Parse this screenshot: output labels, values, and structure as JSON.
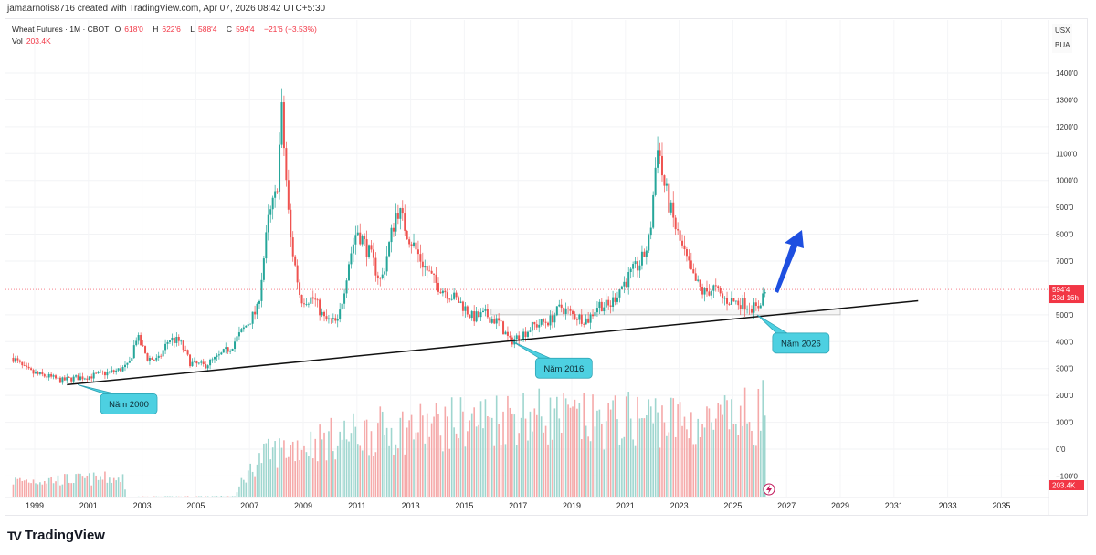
{
  "credit": "jamaarnotis8716 created with TradingView.com, Apr 07, 2026 08:42 UTC+5:30",
  "legend": {
    "title": "Wheat Futures · 1M · CBOT",
    "o_label": "O",
    "o": "618'0",
    "h_label": "H",
    "h": "622'6",
    "l_label": "L",
    "l": "588'4",
    "c_label": "C",
    "c": "594'4",
    "change": "−21'6 (−3.53%)",
    "vol_label": "Vol",
    "vol": "203.4K"
  },
  "currency": "USX",
  "unit": "BUA",
  "logo_text": "TradingView",
  "colors": {
    "up": "#26a69a",
    "down": "#ef5350",
    "accent": "#f23645",
    "callout": "#4dd0e1",
    "arrow": "#1e4fe0"
  },
  "chart_data": {
    "type": "candlestick",
    "x_ticks": [
      "1999",
      "2001",
      "2003",
      "2005",
      "2007",
      "2009",
      "2011",
      "2013",
      "2015",
      "2017",
      "2019",
      "2021",
      "2023",
      "2025",
      "2027",
      "2029",
      "2031",
      "2033",
      "2035"
    ],
    "y_ticks": [
      "1400'0",
      "1300'0",
      "1200'0",
      "1100'0",
      "1000'0",
      "900'0",
      "800'0",
      "700'0",
      "500'0",
      "400'0",
      "300'0",
      "200'0",
      "100'0",
      "0'0",
      "−100'0"
    ],
    "ylim": [
      -100,
      1400
    ],
    "xlim": [
      1998.1,
      2036.2
    ],
    "last_price": 594.5,
    "last_price_label": "594'4",
    "countdown": "23d 16h",
    "volume_label": "203.4K",
    "price_path": [
      [
        1998.2,
        340
      ],
      [
        1998.6,
        300
      ],
      [
        1999,
        280
      ],
      [
        1999.5,
        270
      ],
      [
        2000,
        255
      ],
      [
        2000.5,
        265
      ],
      [
        2001,
        270
      ],
      [
        2001.5,
        280
      ],
      [
        2002,
        290
      ],
      [
        2002.5,
        310
      ],
      [
        2002.8,
        420
      ],
      [
        2003.2,
        340
      ],
      [
        2003.6,
        330
      ],
      [
        2004,
        410
      ],
      [
        2004.4,
        400
      ],
      [
        2004.8,
        320
      ],
      [
        2005.3,
        310
      ],
      [
        2005.8,
        340
      ],
      [
        2006.3,
        380
      ],
      [
        2006.8,
        450
      ],
      [
        2007.3,
        520
      ],
      [
        2007.7,
        850
      ],
      [
        2008.0,
        950
      ],
      [
        2008.2,
        1250
      ],
      [
        2008.5,
        800
      ],
      [
        2008.9,
        560
      ],
      [
        2009.4,
        560
      ],
      [
        2009.8,
        480
      ],
      [
        2010.3,
        470
      ],
      [
        2010.7,
        700
      ],
      [
        2011.0,
        820
      ],
      [
        2011.5,
        720
      ],
      [
        2011.9,
        620
      ],
      [
        2012.5,
        900
      ],
      [
        2012.9,
        800
      ],
      [
        2013.4,
        700
      ],
      [
        2013.9,
        620
      ],
      [
        2014.4,
        580
      ],
      [
        2014.9,
        540
      ],
      [
        2015.3,
        490
      ],
      [
        2015.8,
        500
      ],
      [
        2016.3,
        470
      ],
      [
        2016.7,
        400
      ],
      [
        2017.2,
        430
      ],
      [
        2017.6,
        460
      ],
      [
        2018.2,
        480
      ],
      [
        2018.6,
        530
      ],
      [
        2019.0,
        500
      ],
      [
        2019.6,
        480
      ],
      [
        2020.0,
        540
      ],
      [
        2020.4,
        530
      ],
      [
        2020.8,
        600
      ],
      [
        2021.2,
        650
      ],
      [
        2021.6,
        700
      ],
      [
        2021.9,
        780
      ],
      [
        2022.2,
        1150
      ],
      [
        2022.4,
        1000
      ],
      [
        2022.7,
        880
      ],
      [
        2023.0,
        780
      ],
      [
        2023.5,
        640
      ],
      [
        2023.9,
        580
      ],
      [
        2024.3,
        600
      ],
      [
        2024.6,
        560
      ],
      [
        2025.0,
        550
      ],
      [
        2025.5,
        540
      ],
      [
        2025.9,
        520
      ],
      [
        2026.1,
        570
      ],
      [
        2026.25,
        594.5
      ]
    ],
    "volume_path": [
      [
        1998.2,
        60
      ],
      [
        2002.3,
        70
      ],
      [
        2002.4,
        3
      ],
      [
        2006.5,
        5
      ],
      [
        2006.7,
        60
      ],
      [
        2007.5,
        150
      ],
      [
        2008.5,
        180
      ],
      [
        2011,
        230
      ],
      [
        2014,
        260
      ],
      [
        2017,
        300
      ],
      [
        2020,
        270
      ],
      [
        2022,
        290
      ],
      [
        2024,
        260
      ],
      [
        2026,
        300
      ],
      [
        2026.25,
        360
      ]
    ],
    "trendline": [
      [
        2000.2,
        240
      ],
      [
        2031.9,
        552
      ]
    ],
    "zone": {
      "from": 2016.0,
      "to": 2029.0,
      "low": 500,
      "high": 522
    },
    "annotations": [
      {
        "text": "Năm 2000",
        "year": 2000.6,
        "price": 240
      },
      {
        "text": "Năm 2016",
        "year": 2016.8,
        "price": 400
      },
      {
        "text": "Năm 2026",
        "year": 2025.9,
        "price": 500
      }
    ]
  }
}
